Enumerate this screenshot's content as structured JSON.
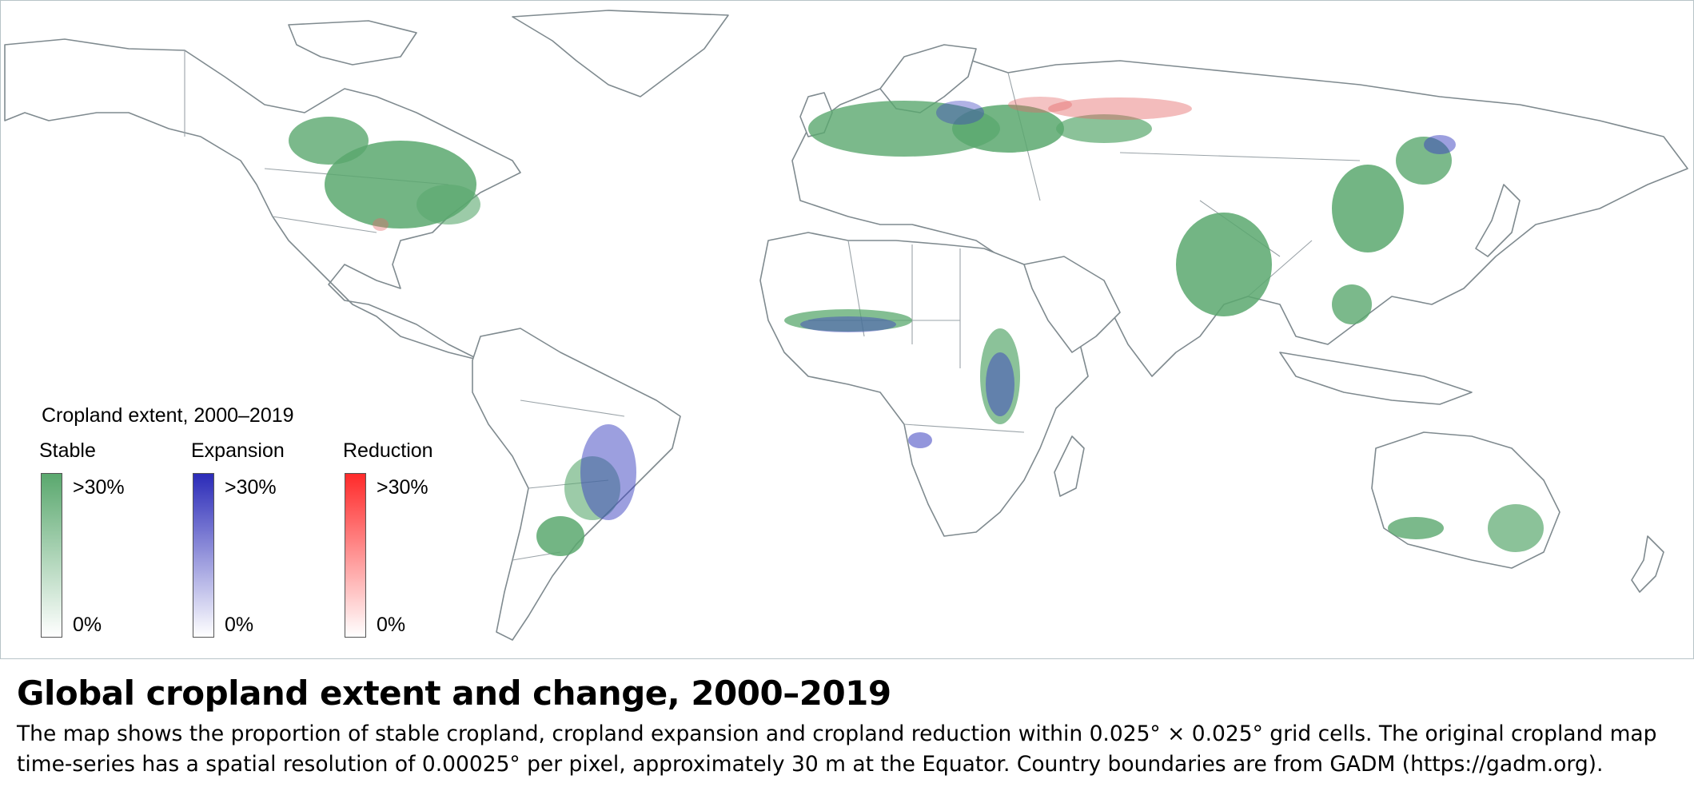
{
  "map": {
    "projection": "equirectangular world map",
    "colors": {
      "stable": "#5aa86e",
      "expansion": "#2b2bb8",
      "reduction": "#ff2a2a",
      "border": "#7f8a8f"
    }
  },
  "legend": {
    "title": "Cropland extent, 2000–2019",
    "categories": [
      {
        "label": "Stable",
        "max_label": ">30%",
        "min_label": "0%",
        "color": "#5aa86e",
        "max": 30,
        "min": 0
      },
      {
        "label": "Expansion",
        "max_label": ">30%",
        "min_label": "0%",
        "color": "#2b2bb8",
        "max": 30,
        "min": 0
      },
      {
        "label": "Reduction",
        "max_label": ">30%",
        "min_label": "0%",
        "color": "#ff2a2a",
        "max": 30,
        "min": 0
      }
    ]
  },
  "caption": {
    "title": "Global cropland extent and change, 2000–2019",
    "line1": "The map shows the proportion of stable cropland, cropland expansion and cropland reduction within 0.025° × 0.025° grid cells. The original cropland map",
    "line2": "time-series has a spatial resolution of 0.00025° per pixel, approximately 30 m at the Equator. Country boundaries are from GADM (https://gadm.org)."
  }
}
